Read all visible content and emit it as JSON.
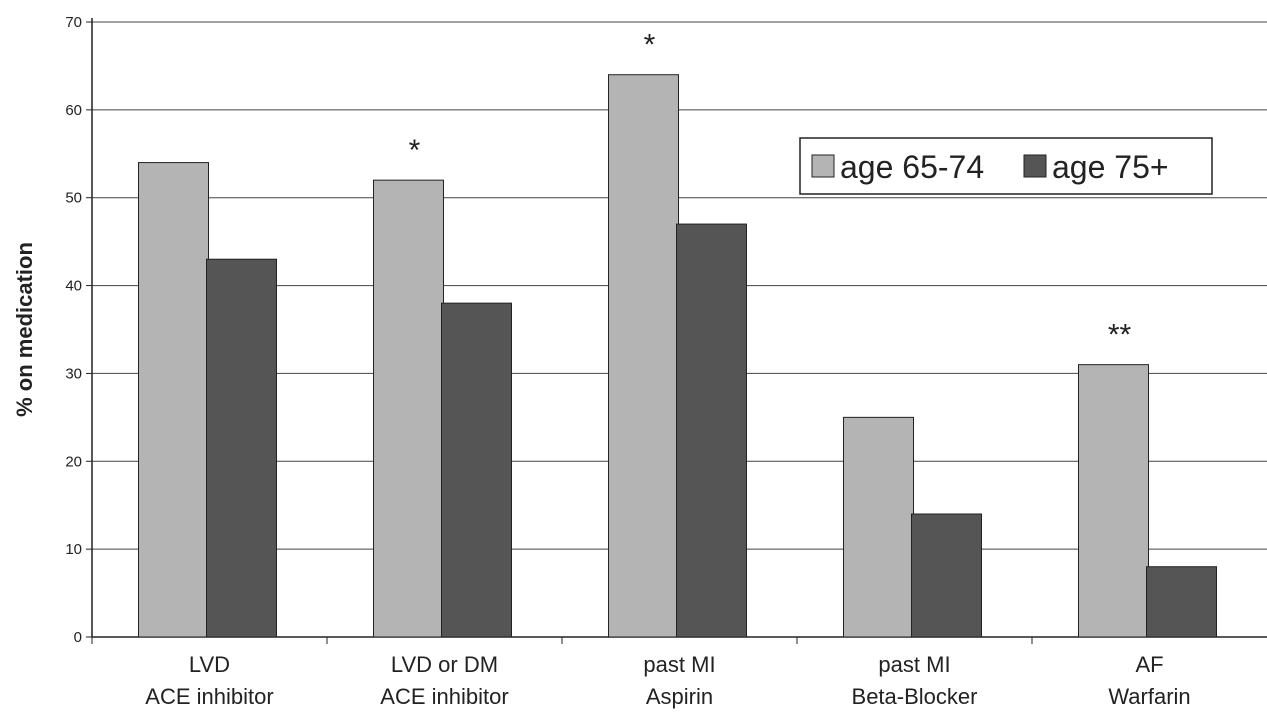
{
  "chart_data": {
    "type": "bar",
    "title": "",
    "xlabel": "",
    "ylabel": "% on medication",
    "ylim": [
      0,
      70
    ],
    "yticks": [
      0,
      10,
      20,
      30,
      40,
      50,
      60,
      70
    ],
    "grid": true,
    "legend_position": "top-right",
    "categories": [
      [
        "LVD",
        "ACE inhibitor"
      ],
      [
        "LVD or DM",
        "ACE inhibitor"
      ],
      [
        "past MI",
        "Aspirin"
      ],
      [
        "past MI",
        "Beta-Blocker"
      ],
      [
        "AF",
        "Warfarin"
      ]
    ],
    "series": [
      {
        "name": "age 65-74",
        "color": "#b4b4b4",
        "values": [
          54,
          52,
          64,
          25,
          31
        ]
      },
      {
        "name": "age 75+",
        "color": "#555555",
        "values": [
          43,
          38,
          47,
          14,
          8
        ]
      }
    ],
    "annotations": [
      "",
      "*",
      "*",
      "",
      "**"
    ]
  }
}
